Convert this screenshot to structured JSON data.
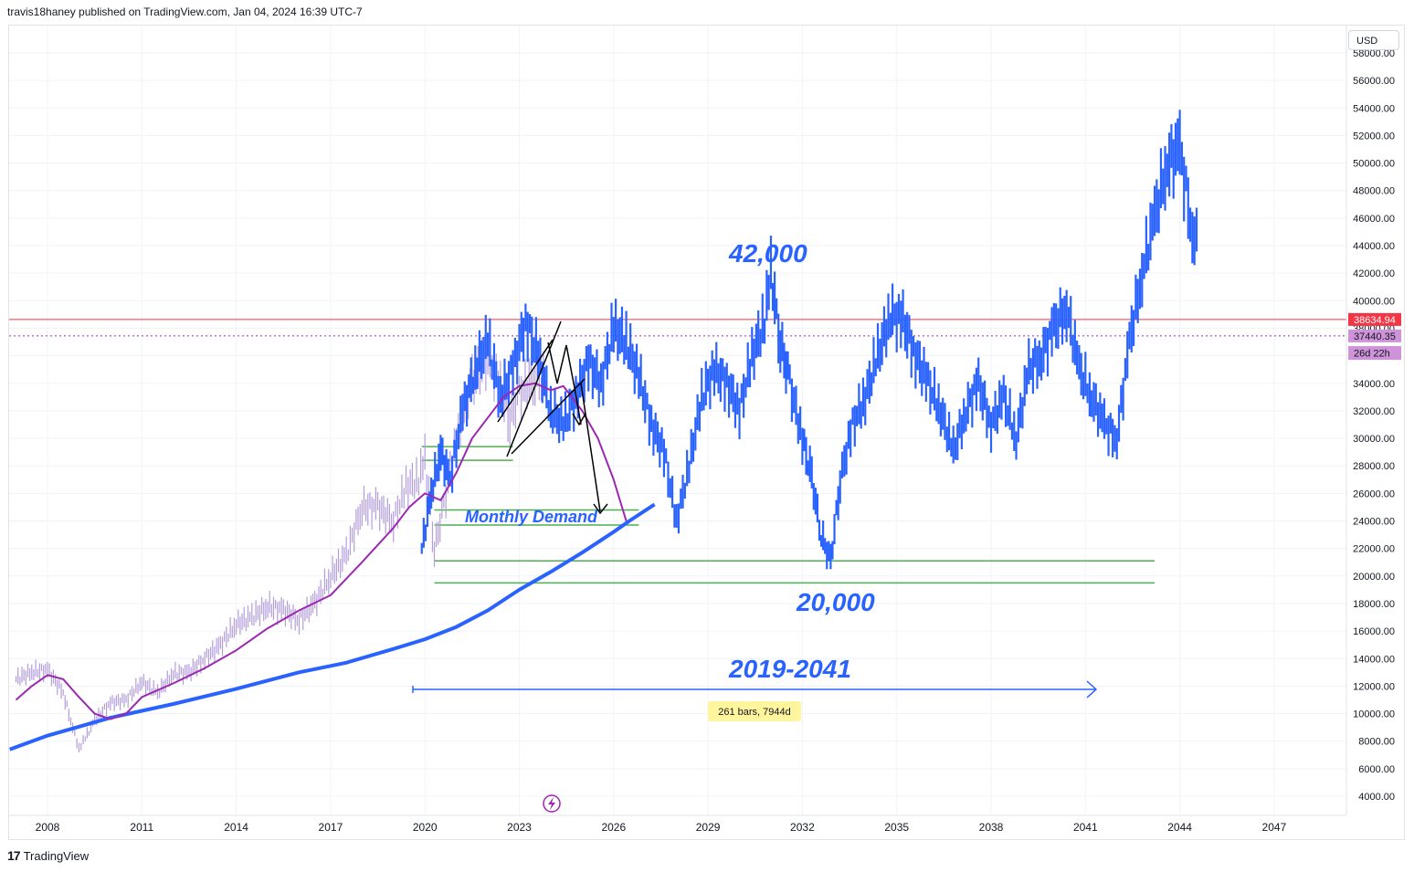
{
  "header": {
    "published_text": "travis18haney published on TradingView.com, Jan 04, 2024 16:39 UTC-7"
  },
  "footer": {
    "logo_text": "TradingView"
  },
  "price_scale": {
    "currency": "USD"
  },
  "chart_data": {
    "type": "line",
    "title": "",
    "ylim": [
      3000,
      59000
    ],
    "y_ticks": [
      4000,
      6000,
      8000,
      10000,
      12000,
      14000,
      16000,
      18000,
      20000,
      22000,
      24000,
      26000,
      28000,
      30000,
      32000,
      34000,
      36000,
      38000,
      40000,
      42000,
      44000,
      46000,
      48000,
      50000,
      52000,
      54000,
      56000,
      58000
    ],
    "y_tick_labels": [
      "4000.00",
      "6000.00",
      "8000.00",
      "10000.00",
      "12000.00",
      "14000.00",
      "16000.00",
      "18000.00",
      "20000.00",
      "22000.00",
      "24000.00",
      "26000.00",
      "28000.00",
      "30000.00",
      "32000.00",
      "34000.00",
      "36000.00",
      "38000.00",
      "40000.00",
      "42000.00",
      "44000.00",
      "46000.00",
      "48000.00",
      "50000.00",
      "52000.00",
      "54000.00",
      "56000.00",
      "58000.00"
    ],
    "x_ticks": [
      "2008",
      "2011",
      "2014",
      "2017",
      "2020",
      "2023",
      "2026",
      "2029",
      "2032",
      "2035",
      "2038",
      "2041",
      "2044",
      "2047"
    ],
    "xlim": [
      2006.8,
      2050.8
    ],
    "historical_series": {
      "color": "#b39ddb",
      "x": [
        2007.0,
        2007.5,
        2008.0,
        2008.5,
        2008.8,
        2009.0,
        2009.2,
        2009.5,
        2010.0,
        2010.5,
        2011.0,
        2011.5,
        2012.0,
        2012.5,
        2013.0,
        2013.5,
        2014.0,
        2014.5,
        2015.0,
        2015.5,
        2016.0,
        2016.5,
        2017.0,
        2017.5,
        2018.0,
        2018.5,
        2019.0,
        2019.4,
        2019.8,
        2020.0,
        2020.3,
        2020.6,
        2021.0,
        2021.5,
        2022.0,
        2022.4,
        2022.7,
        2023.0,
        2023.5,
        2023.9
      ],
      "y": [
        12500,
        13000,
        13200,
        11500,
        9000,
        7500,
        8200,
        9500,
        10800,
        11000,
        12300,
        11500,
        12900,
        13000,
        14000,
        15000,
        16500,
        17000,
        17800,
        17500,
        16800,
        18000,
        20000,
        21500,
        25000,
        25000,
        24000,
        26500,
        27000,
        28500,
        22000,
        25000,
        30000,
        34000,
        36000,
        33500,
        31500,
        33200,
        34500,
        33800
      ]
    },
    "projection_series": {
      "color": "#2962ff",
      "x": [
        2019.9,
        2020.2,
        2020.5,
        2020.8,
        2021.2,
        2021.6,
        2022.0,
        2022.4,
        2022.8,
        2023.2,
        2023.6,
        2024.0,
        2024.4,
        2024.8,
        2025.2,
        2025.6,
        2026.0,
        2026.4,
        2026.8,
        2027.2,
        2027.6,
        2028.0,
        2028.4,
        2028.8,
        2029.2,
        2029.6,
        2030.0,
        2030.4,
        2030.8,
        2031.0,
        2031.3,
        2031.6,
        2032.0,
        2032.3,
        2032.6,
        2032.9,
        2033.2,
        2033.6,
        2034.0,
        2034.4,
        2034.8,
        2035.2,
        2035.6,
        2036.0,
        2036.4,
        2036.8,
        2037.2,
        2037.6,
        2038.0,
        2038.4,
        2038.8,
        2039.2,
        2039.6,
        2040.0,
        2040.4,
        2040.8,
        2041.2,
        2041.6,
        2042.0,
        2042.4,
        2042.8,
        2043.2,
        2043.6,
        2044.0,
        2044.4,
        2044.6
      ],
      "y": [
        22000,
        26000,
        29000,
        27000,
        32000,
        35000,
        37000,
        33000,
        35000,
        38500,
        36000,
        32000,
        31000,
        33000,
        35500,
        34000,
        38000,
        37000,
        34500,
        31000,
        29000,
        24000,
        28000,
        33000,
        35000,
        34000,
        32000,
        36000,
        38500,
        42000,
        37000,
        34000,
        30000,
        27000,
        23000,
        21000,
        27000,
        31000,
        33000,
        36000,
        39000,
        38500,
        36000,
        34000,
        32000,
        29000,
        32000,
        34000,
        31000,
        33000,
        30000,
        35000,
        36000,
        38000,
        39500,
        35000,
        33000,
        31000,
        30000,
        37000,
        42000,
        46000,
        50000,
        51000,
        45000,
        44000
      ]
    },
    "moving_average_short": {
      "color": "#9c27b0",
      "x": [
        2007.0,
        2007.5,
        2008.0,
        2008.5,
        2009.0,
        2009.5,
        2010.0,
        2010.5,
        2011.0,
        2012.0,
        2013.0,
        2014.0,
        2015.0,
        2016.0,
        2017.0,
        2018.0,
        2019.0,
        2019.5,
        2020.0,
        2020.5,
        2021.0,
        2021.5,
        2022.0,
        2022.5,
        2023.0,
        2023.5,
        2024.0,
        2024.4,
        2025.0,
        2025.5,
        2026.0,
        2026.4
      ],
      "y": [
        11000,
        12000,
        12800,
        12500,
        11200,
        10000,
        9600,
        10000,
        11200,
        12200,
        13300,
        14600,
        16200,
        17500,
        18600,
        21000,
        23500,
        25000,
        26000,
        25500,
        27500,
        30000,
        31500,
        33000,
        33800,
        34000,
        33500,
        33800,
        32000,
        30000,
        27000,
        24000
      ]
    },
    "moving_average_long": {
      "color": "#2962ff",
      "x": [
        2006.8,
        2008.0,
        2010.0,
        2012.0,
        2014.0,
        2016.0,
        2017.5,
        2019.0,
        2020.0,
        2021.0,
        2022.0,
        2023.0,
        2024.0,
        2025.0,
        2026.0,
        2026.5,
        2027.3
      ],
      "y": [
        7400,
        8400,
        9700,
        10700,
        11800,
        13000,
        13700,
        14700,
        15400,
        16300,
        17500,
        19000,
        20300,
        21700,
        23200,
        24000,
        25200
      ]
    },
    "horizontal_lines": [
      {
        "name": "last-price-line",
        "value": 38634.94,
        "color": "#f23645"
      },
      {
        "name": "projection-price-line",
        "value": 37440.35,
        "color": "#9c27b0"
      }
    ],
    "demand_zones": [
      {
        "y": 29400,
        "x_start": 2019.9,
        "x_end": 2022.8
      },
      {
        "y": 28400,
        "x_start": 2019.9,
        "x_end": 2022.8
      },
      {
        "y": 24800,
        "x_start": 2020.3,
        "x_end": 2026.8
      },
      {
        "y": 23700,
        "x_start": 2020.3,
        "x_end": 2026.8
      },
      {
        "y": 21100,
        "x_start": 2020.3,
        "x_end": 2043.2
      },
      {
        "y": 19500,
        "x_start": 2020.3,
        "x_end": 2043.2
      }
    ],
    "price_labels": [
      {
        "text": "38634.94",
        "value": 38634.94,
        "bg": "#f23645"
      },
      {
        "text": "37440.35",
        "value": 37440.35,
        "bg": "#ce93d8"
      },
      {
        "text": "26d 22h",
        "value": 36200,
        "bg": "#ce93d8"
      }
    ],
    "annotations": {
      "high_label": "42,000",
      "low_label": "20,000",
      "range_label": "2019-2041",
      "demand_label": "Monthly Demand",
      "measure_label": "261 bars, 7944d"
    }
  }
}
